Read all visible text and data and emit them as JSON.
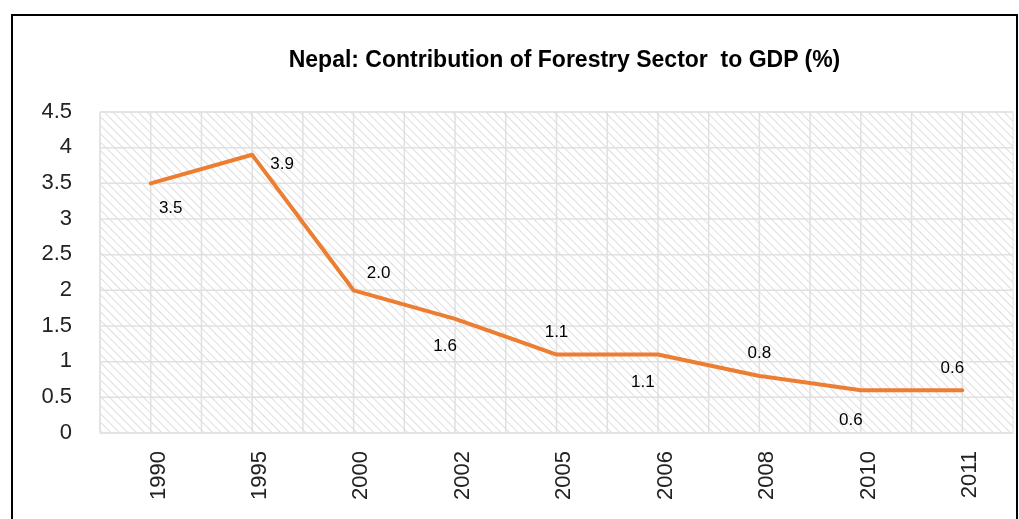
{
  "chart_data": {
    "type": "line",
    "title": "Nepal: Contribution of Forestry Sector  to GDP (%)",
    "categories": [
      "1990",
      "1995",
      "2000",
      "2002",
      "2005",
      "2006",
      "2008",
      "2010",
      "2011"
    ],
    "series": [
      {
        "color": "#ed7d31",
        "values": [
          3.5,
          3.9,
          2.0,
          1.6,
          1.1,
          1.1,
          0.8,
          0.6,
          0.6
        ],
        "value_labels": [
          "3.5",
          "3.9",
          "2.0",
          "1.6",
          "1.1",
          "1.1",
          "0.8",
          "0.6",
          "0.6"
        ]
      }
    ],
    "ylim": [
      0,
      4.5
    ],
    "yticks": [
      0,
      0.5,
      1,
      1.5,
      2,
      2.5,
      3,
      3.5,
      4,
      4.5
    ],
    "grid": true,
    "marker": "none",
    "line_style": "solid"
  }
}
